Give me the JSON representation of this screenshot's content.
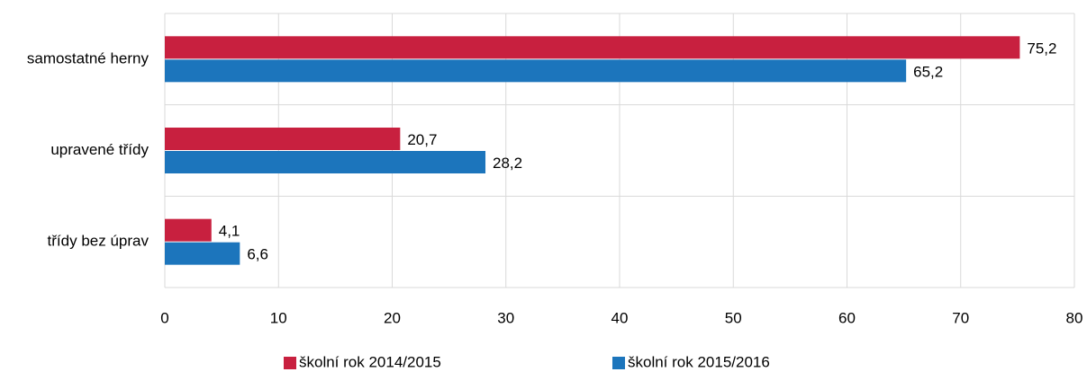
{
  "chart_data": {
    "type": "hbar",
    "categories": [
      "samostatné herny",
      "upravené třídy",
      "třídy bez úprav"
    ],
    "series": [
      {
        "name": "školní rok 2014/2015",
        "color": "#c8203f",
        "values": [
          75.2,
          20.7,
          4.1
        ],
        "value_labels": [
          "75,2",
          "20,7",
          "4,1"
        ]
      },
      {
        "name": "školní rok 2015/2016",
        "color": "#1c75bc",
        "values": [
          65.2,
          28.2,
          6.6
        ],
        "value_labels": [
          "65,2",
          "28,2",
          "6,6"
        ]
      }
    ],
    "xlim": [
      0,
      80
    ],
    "xticks": [
      0,
      10,
      20,
      30,
      40,
      50,
      60,
      70,
      80
    ],
    "grid": true
  }
}
